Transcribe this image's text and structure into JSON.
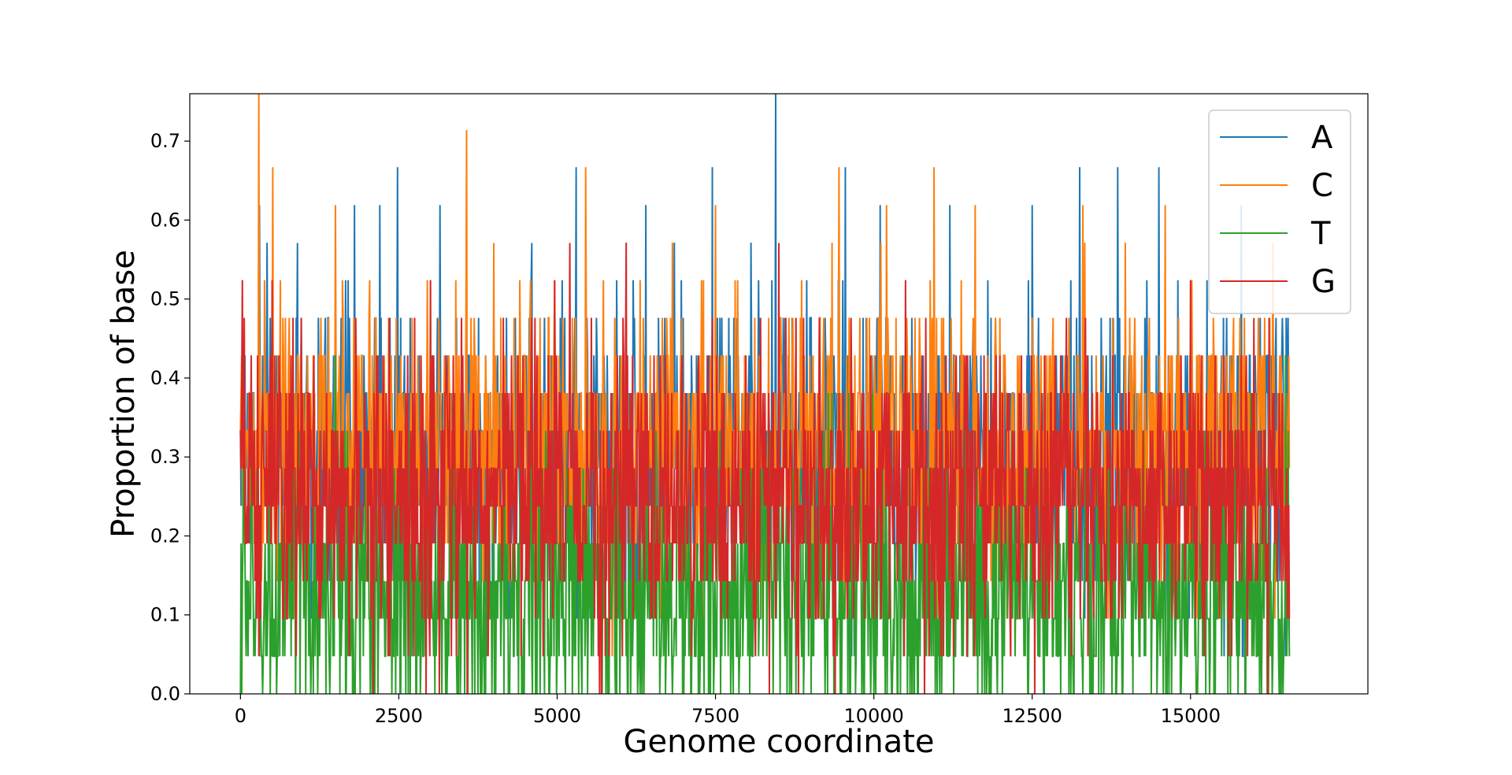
{
  "chart_data": {
    "type": "line",
    "xlabel": "Genome coordinate",
    "ylabel": "Proportion of base",
    "xlim": [
      -1700,
      35000
    ],
    "ylim": [
      0.0,
      0.76
    ],
    "x_ticks": [
      0,
      2500,
      5000,
      7500,
      10000,
      12500,
      15000
    ],
    "x_tick_labels": [
      "0",
      "2500",
      "5000",
      "7500",
      "10000",
      "12500",
      "15000"
    ],
    "y_ticks": [
      0.0,
      0.1,
      0.2,
      0.3,
      0.4,
      0.5,
      0.6,
      0.7
    ],
    "y_tick_labels": [
      "0.0",
      "0.1",
      "0.2",
      "0.3",
      "0.4",
      "0.5",
      "0.6",
      "0.7"
    ],
    "grid": false,
    "legend_position": "top-right",
    "x_range": [
      0,
      16569
    ],
    "window": 21,
    "series": [
      {
        "name": "A",
        "color": "#1f77b4",
        "mean": 0.31,
        "spikes": [
          [
            300,
            0.619
          ],
          [
            900,
            0.571
          ],
          [
            1800,
            0.619
          ],
          [
            2200,
            0.619
          ],
          [
            2480,
            0.667
          ],
          [
            3150,
            0.619
          ],
          [
            4600,
            0.571
          ],
          [
            5300,
            0.667
          ],
          [
            6400,
            0.619
          ],
          [
            7450,
            0.667
          ],
          [
            8450,
            0.762
          ],
          [
            9550,
            0.667
          ],
          [
            10100,
            0.619
          ],
          [
            11200,
            0.619
          ],
          [
            12500,
            0.619
          ],
          [
            13250,
            0.667
          ],
          [
            13850,
            0.667
          ],
          [
            14500,
            0.667
          ],
          [
            15800,
            0.619
          ],
          [
            16450,
            0.476
          ]
        ]
      },
      {
        "name": "C",
        "color": "#ff7f0e",
        "mean": 0.31,
        "spikes": [
          [
            290,
            0.762
          ],
          [
            510,
            0.667
          ],
          [
            1500,
            0.619
          ],
          [
            3570,
            0.714
          ],
          [
            4000,
            0.571
          ],
          [
            5450,
            0.667
          ],
          [
            7500,
            0.619
          ],
          [
            9450,
            0.667
          ],
          [
            10200,
            0.619
          ],
          [
            10950,
            0.667
          ],
          [
            11600,
            0.619
          ],
          [
            13300,
            0.619
          ],
          [
            14600,
            0.619
          ],
          [
            16300,
            0.571
          ]
        ]
      },
      {
        "name": "T",
        "color": "#2ca02c",
        "mean": 0.13,
        "spikes": [
          [
            0,
            0.0
          ],
          [
            50,
            0.429
          ],
          [
            1500,
            0.429
          ],
          [
            3000,
            0.476
          ],
          [
            7000,
            0.0
          ],
          [
            16500,
            0.429
          ]
        ]
      },
      {
        "name": "G",
        "color": "#d62728",
        "mean": 0.25,
        "spikes": [
          [
            30,
            0.524
          ],
          [
            500,
            0.524
          ],
          [
            3000,
            0.524
          ],
          [
            5200,
            0.571
          ],
          [
            8500,
            0.571
          ],
          [
            10500,
            0.524
          ],
          [
            15000,
            0.524
          ],
          [
            16000,
            0.476
          ]
        ]
      }
    ]
  }
}
